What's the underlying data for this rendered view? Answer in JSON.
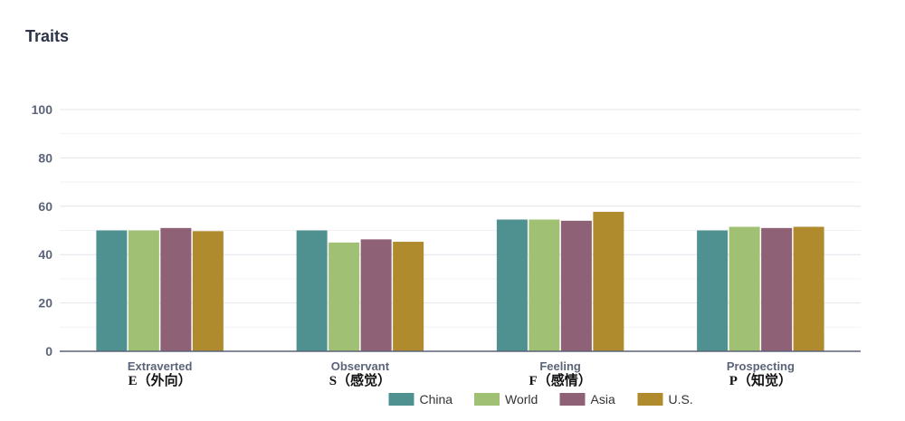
{
  "page_title": "Traits",
  "colors": {
    "China": "#4f9191",
    "World": "#a0c173",
    "Asia": "#8e6177",
    "U.S.": "#b08b2e",
    "grid": "#e2e4ea",
    "axis": "#5b6478"
  },
  "chart_data": {
    "type": "bar",
    "title": "Traits",
    "categories": [
      "Extraverted",
      "Observant",
      "Feeling",
      "Prospecting"
    ],
    "category_sublabels": [
      "E（外向）",
      "S（感觉）",
      "F（感情）",
      "P（知觉）"
    ],
    "series": [
      {
        "name": "China",
        "values": [
          50,
          50,
          54.5,
          50
        ]
      },
      {
        "name": "World",
        "values": [
          50,
          45,
          54.5,
          51.5
        ]
      },
      {
        "name": "Asia",
        "values": [
          51,
          46.3,
          54,
          51
        ]
      },
      {
        "name": "U.S.",
        "values": [
          49.7,
          45.3,
          57.7,
          51.5
        ]
      }
    ],
    "y_ticks": [
      0,
      20,
      40,
      60,
      80,
      100
    ],
    "ylim": [
      0,
      100
    ],
    "grid": true,
    "legend_position": "bottom-center",
    "xlabel": "",
    "ylabel": ""
  }
}
